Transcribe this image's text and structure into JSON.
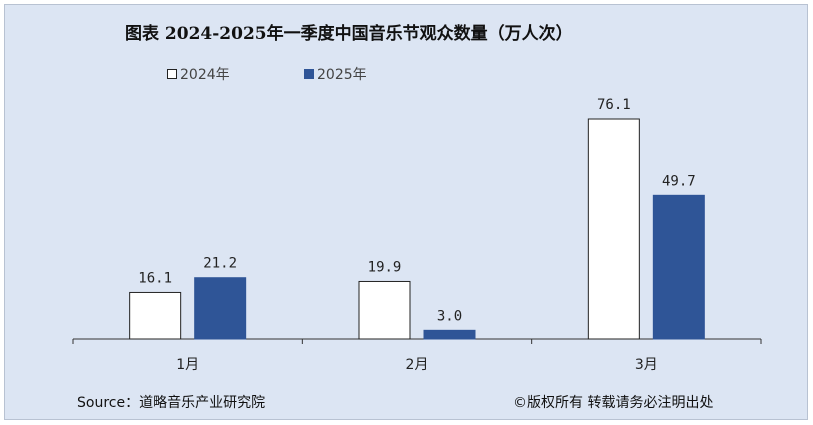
{
  "title": "图表 2024-2025年一季度中国音乐节观众数量（万人次）",
  "colors": {
    "series_2024": "#ffffff",
    "series_2025": "#2f5597",
    "background": "#dce5f3"
  },
  "chart_data": {
    "type": "bar",
    "title": "图表 2024-2025年一季度中国音乐节观众数量（万人次）",
    "categories": [
      "1月",
      "2月",
      "3月"
    ],
    "series": [
      {
        "name": "2024年",
        "values": [
          16.1,
          19.9,
          76.1
        ],
        "labels": [
          "16.1",
          "19.9",
          "76.1"
        ]
      },
      {
        "name": "2025年",
        "values": [
          21.2,
          3.0,
          49.7
        ],
        "labels": [
          "21.2",
          "3.0",
          "49.7"
        ]
      }
    ],
    "ylim": [
      0,
      80
    ],
    "grid": false,
    "legend_position": "top"
  },
  "footer": {
    "source": "Source：道略音乐产业研究院",
    "copyright": "©版权所有  转载请务必注明出处"
  }
}
